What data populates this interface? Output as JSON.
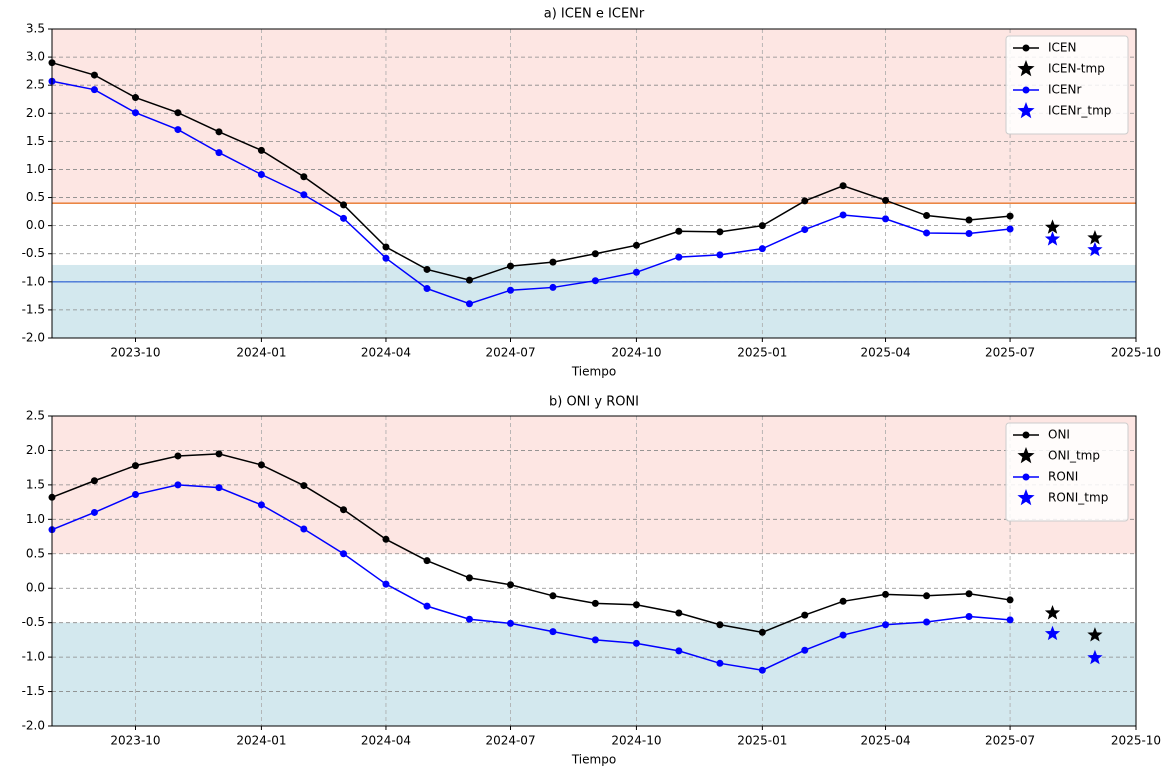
{
  "chart_data": [
    {
      "type": "line",
      "title": "a) ICEN e ICENr",
      "x_label": "Tiempo",
      "xlim": [
        "2023-08",
        "2025-10"
      ],
      "xticks": [
        "2023-10",
        "2024-01",
        "2024-04",
        "2024-07",
        "2024-10",
        "2025-01",
        "2025-04",
        "2025-07",
        "2025-10"
      ],
      "ylim": [
        -2.0,
        3.5
      ],
      "yticks": [
        {
          "value": -2,
          "label": "-2.0"
        },
        -1.5,
        {
          "value": -1,
          "label": "-1.0"
        },
        -0.5,
        {
          "value": 0,
          "label": "0.0"
        },
        0.5,
        {
          "value": 1,
          "label": "1.0"
        },
        1.5,
        {
          "value": 2,
          "label": "2.0"
        },
        2.5,
        {
          "value": 3,
          "label": "3.0"
        },
        3.5
      ],
      "grid": true,
      "legend": "upper right",
      "bands": [
        {
          "above": 0.4,
          "color": "#fde6e3"
        },
        {
          "below": -0.7,
          "color": "#d3e8ee"
        }
      ],
      "hlines": [
        {
          "value": 0.4,
          "color": "#e8742a"
        },
        {
          "value": -1.0,
          "color": "#4575d8"
        }
      ],
      "series": [
        {
          "name": "ICEN",
          "color": "#000000",
          "marker": "o",
          "x": [
            "2023-08",
            "2023-09",
            "2023-10",
            "2023-11",
            "2023-12",
            "2024-01",
            "2024-02",
            "2024-03",
            "2024-04",
            "2024-05",
            "2024-06",
            "2024-07",
            "2024-08",
            "2024-09",
            "2024-10",
            "2024-11",
            "2024-12",
            "2025-01",
            "2025-02",
            "2025-03",
            "2025-04",
            "2025-05",
            "2025-06",
            "2025-07"
          ],
          "values": [
            2.9,
            2.68,
            2.28,
            2.01,
            1.67,
            1.34,
            0.87,
            0.37,
            -0.38,
            -0.78,
            -0.97,
            -0.72,
            -0.65,
            -0.5,
            -0.35,
            -0.1,
            -0.11,
            0.0,
            0.44,
            0.71,
            0.45,
            0.18,
            0.1,
            0.17
          ]
        },
        {
          "name": "ICEN-tmp",
          "color": "#000000",
          "marker": "*",
          "x": [
            "2025-08",
            "2025-09"
          ],
          "values": [
            -0.03,
            -0.22
          ]
        },
        {
          "name": "ICENr",
          "color": "#0000ff",
          "marker": "o",
          "x": [
            "2023-08",
            "2023-09",
            "2023-10",
            "2023-11",
            "2023-12",
            "2024-01",
            "2024-02",
            "2024-03",
            "2024-04",
            "2024-05",
            "2024-06",
            "2024-07",
            "2024-08",
            "2024-09",
            "2024-10",
            "2024-11",
            "2024-12",
            "2025-01",
            "2025-02",
            "2025-03",
            "2025-04",
            "2025-05",
            "2025-06",
            "2025-07"
          ],
          "values": [
            2.57,
            2.42,
            2.01,
            1.71,
            1.3,
            0.91,
            0.55,
            0.13,
            -0.58,
            -1.12,
            -1.39,
            -1.15,
            -1.1,
            -0.98,
            -0.83,
            -0.56,
            -0.52,
            -0.41,
            -0.07,
            0.19,
            0.12,
            -0.13,
            -0.14,
            -0.06
          ]
        },
        {
          "name": "ICENr_tmp",
          "color": "#0000ff",
          "marker": "*",
          "x": [
            "2025-08",
            "2025-09"
          ],
          "values": [
            -0.24,
            -0.43
          ]
        }
      ]
    },
    {
      "type": "line",
      "title": "b) ONI y RONI",
      "x_label": "Tiempo",
      "xlim": [
        "2023-08",
        "2025-10"
      ],
      "xticks": [
        "2023-10",
        "2024-01",
        "2024-04",
        "2024-07",
        "2024-10",
        "2025-01",
        "2025-04",
        "2025-07",
        "2025-10"
      ],
      "ylim": [
        -2.0,
        2.5
      ],
      "yticks": [
        {
          "value": -2,
          "label": "-2.0"
        },
        -1.5,
        {
          "value": -1,
          "label": "-1.0"
        },
        -0.5,
        {
          "value": 0,
          "label": "0.0"
        },
        0.5,
        {
          "value": 1,
          "label": "1.0"
        },
        1.5,
        {
          "value": 2,
          "label": "2.0"
        },
        2.5
      ],
      "grid": true,
      "legend": "upper right",
      "bands": [
        {
          "above": 0.5,
          "color": "#fde6e3"
        },
        {
          "below": -0.5,
          "color": "#d3e8ee"
        }
      ],
      "series": [
        {
          "name": "ONI",
          "color": "#000000",
          "marker": "o",
          "x": [
            "2023-08",
            "2023-09",
            "2023-10",
            "2023-11",
            "2023-12",
            "2024-01",
            "2024-02",
            "2024-03",
            "2024-04",
            "2024-05",
            "2024-06",
            "2024-07",
            "2024-08",
            "2024-09",
            "2024-10",
            "2024-11",
            "2024-12",
            "2025-01",
            "2025-02",
            "2025-03",
            "2025-04",
            "2025-05",
            "2025-06",
            "2025-07"
          ],
          "values": [
            1.32,
            1.56,
            1.78,
            1.92,
            1.95,
            1.79,
            1.49,
            1.14,
            0.71,
            0.4,
            0.15,
            0.05,
            -0.11,
            -0.22,
            -0.24,
            -0.36,
            -0.53,
            -0.64,
            -0.39,
            -0.19,
            -0.09,
            -0.11,
            -0.08,
            -0.17
          ]
        },
        {
          "name": "ONI_tmp",
          "color": "#000000",
          "marker": "*",
          "x": [
            "2025-08",
            "2025-09"
          ],
          "values": [
            -0.36,
            -0.68
          ]
        },
        {
          "name": "RONI",
          "color": "#0000ff",
          "marker": "o",
          "x": [
            "2023-08",
            "2023-09",
            "2023-10",
            "2023-11",
            "2023-12",
            "2024-01",
            "2024-02",
            "2024-03",
            "2024-04",
            "2024-05",
            "2024-06",
            "2024-07",
            "2024-08",
            "2024-09",
            "2024-10",
            "2024-11",
            "2024-12",
            "2025-01",
            "2025-02",
            "2025-03",
            "2025-04",
            "2025-05",
            "2025-06",
            "2025-07"
          ],
          "values": [
            0.85,
            1.1,
            1.36,
            1.5,
            1.46,
            1.21,
            0.86,
            0.5,
            0.06,
            -0.26,
            -0.45,
            -0.51,
            -0.63,
            -0.75,
            -0.8,
            -0.91,
            -1.09,
            -1.19,
            -0.9,
            -0.68,
            -0.53,
            -0.49,
            -0.41,
            -0.46
          ]
        },
        {
          "name": "RONI_tmp",
          "color": "#0000ff",
          "marker": "*",
          "x": [
            "2025-08",
            "2025-09"
          ],
          "values": [
            -0.66,
            -1.01
          ]
        }
      ]
    }
  ]
}
